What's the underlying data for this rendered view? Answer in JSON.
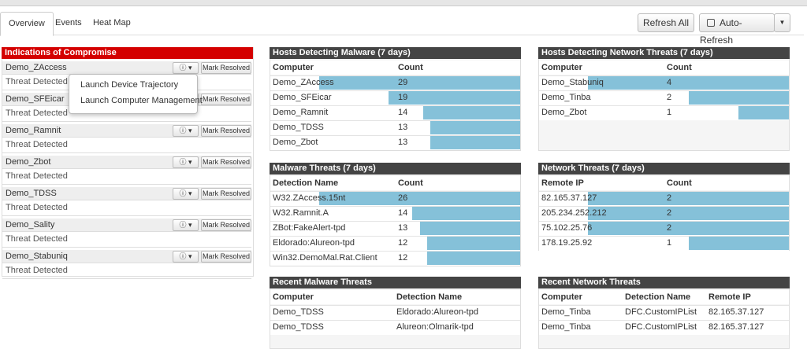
{
  "tabs": [
    "Overview",
    "Events",
    "Heat Map"
  ],
  "toolbar": {
    "refresh": "Refresh All",
    "auto_refresh": "Auto-Refresh"
  },
  "ioc": {
    "title": "Indications of Compromise",
    "action": "Mark Resolved",
    "items": [
      {
        "host": "Demo_ZAccess",
        "status": "Threat Detected"
      },
      {
        "host": "Demo_SFEicar",
        "status": "Threat Detected"
      },
      {
        "host": "Demo_Ramnit",
        "status": "Threat Detected"
      },
      {
        "host": "Demo_Zbot",
        "status": "Threat Detected"
      },
      {
        "host": "Demo_TDSS",
        "status": "Threat Detected"
      },
      {
        "host": "Demo_Sality",
        "status": "Threat Detected"
      },
      {
        "host": "Demo_Stabuniq",
        "status": "Threat Detected"
      }
    ]
  },
  "menu": [
    "Launch Device Trajectory",
    "Launch Computer Management"
  ],
  "panels": [
    {
      "title": "Hosts Detecting Malware (7 days)",
      "columns": [
        "Computer",
        "Count"
      ],
      "rows": [
        [
          "Demo_ZAccess",
          29
        ],
        [
          "Demo_SFEicar",
          19
        ],
        [
          "Demo_Ramnit",
          14
        ],
        [
          "Demo_TDSS",
          13
        ],
        [
          "Demo_Zbot",
          13
        ]
      ]
    },
    {
      "title": "Hosts Detecting Network Threats (7 days)",
      "columns": [
        "Computer",
        "Count"
      ],
      "rows": [
        [
          "Demo_Stabuniq",
          4
        ],
        [
          "Demo_Tinba",
          2
        ],
        [
          "Demo_Zbot",
          1
        ]
      ]
    },
    {
      "title": "Malware Threats (7 days)",
      "columns": [
        "Detection Name",
        "Count"
      ],
      "rows": [
        [
          "W32.ZAccess.15nt",
          26
        ],
        [
          "W32.Ramnit.A",
          14
        ],
        [
          "ZBot:FakeAlert-tpd",
          13
        ],
        [
          "Eldorado:Alureon-tpd",
          12
        ],
        [
          "Win32.DemoMal.Rat.Client",
          12
        ]
      ]
    },
    {
      "title": "Network Threats (7 days)",
      "columns": [
        "Remote IP",
        "Count"
      ],
      "rows": [
        [
          "82.165.37.127",
          2
        ],
        [
          "205.234.252.212",
          2
        ],
        [
          "75.102.25.76",
          2
        ],
        [
          "178.19.25.92",
          1
        ]
      ]
    },
    {
      "title": "Recent Malware Threats",
      "columns": [
        "Computer",
        "Detection Name"
      ],
      "rows": [
        [
          "Demo_TDSS",
          "Eldorado:Alureon-tpd"
        ],
        [
          "Demo_TDSS",
          "Alureon:Olmarik-tpd"
        ]
      ]
    },
    {
      "title": "Recent Network Threats",
      "columns": [
        "Computer",
        "Detection Name",
        "Remote IP"
      ],
      "rows": [
        [
          "Demo_Tinba",
          "DFC.CustomIPList",
          "82.165.37.127"
        ],
        [
          "Demo_Tinba",
          "DFC.CustomIPList",
          "82.165.37.127"
        ]
      ]
    }
  ]
}
